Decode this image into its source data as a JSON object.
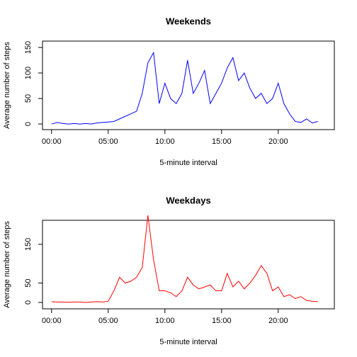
{
  "chart_data": [
    {
      "type": "line",
      "title": "Weekends",
      "x_label": "5-minute interval",
      "y_label": "Average number of steps",
      "x": [
        0,
        0.5,
        1,
        1.5,
        2,
        2.5,
        3,
        3.5,
        4,
        4.5,
        5,
        5.5,
        6,
        6.5,
        7,
        7.5,
        8,
        8.5,
        9,
        9.5,
        10,
        10.5,
        11,
        11.5,
        12,
        12.5,
        13,
        13.5,
        14,
        14.5,
        15,
        15.5,
        16,
        16.5,
        17,
        17.5,
        18,
        18.5,
        19,
        19.5,
        20,
        20.5,
        21,
        21.5,
        22,
        22.5,
        23,
        23.5
      ],
      "series": [
        {
          "name": "Weekends",
          "color": "#0000ff",
          "values": [
            0,
            3,
            1,
            0,
            1,
            0,
            1,
            0,
            2,
            3,
            4,
            5,
            10,
            15,
            20,
            25,
            60,
            120,
            140,
            40,
            80,
            50,
            40,
            60,
            125,
            60,
            80,
            105,
            40,
            60,
            80,
            110,
            130,
            85,
            100,
            70,
            50,
            60,
            40,
            50,
            80,
            40,
            20,
            5,
            3,
            10,
            2,
            5
          ]
        }
      ],
      "xlim": [
        -0.8,
        24.95
      ],
      "ylim": [
        -11,
        162.5
      ],
      "xticks": [
        {
          "value": 0,
          "label": "00:00"
        },
        {
          "value": 5,
          "label": "05:00"
        },
        {
          "value": 10,
          "label": "10:00"
        },
        {
          "value": 15,
          "label": "15:00"
        },
        {
          "value": 20,
          "label": "20:00"
        }
      ],
      "yticks": [
        0,
        50,
        100,
        150
      ]
    },
    {
      "type": "line",
      "title": "Weekdays",
      "x_label": "5-minute interval",
      "y_label": "Average number of steps",
      "x": [
        0,
        0.5,
        1,
        1.5,
        2,
        2.5,
        3,
        3.5,
        4,
        4.5,
        5,
        5.5,
        6,
        6.5,
        7,
        7.5,
        8,
        8.5,
        9,
        9.5,
        10,
        10.5,
        11,
        11.5,
        12,
        12.5,
        13,
        13.5,
        14,
        14.5,
        15,
        15.5,
        16,
        16.5,
        17,
        17.5,
        18,
        18.5,
        19,
        19.5,
        20,
        20.5,
        21,
        21.5,
        22,
        22.5,
        23,
        23.5
      ],
      "series": [
        {
          "name": "Weekdays",
          "color": "#ff0000",
          "values": [
            2,
            1,
            1,
            0.5,
            1,
            1,
            0,
            1,
            2,
            1,
            3,
            30,
            65,
            50,
            55,
            65,
            90,
            225,
            110,
            30,
            30,
            25,
            15,
            30,
            65,
            45,
            35,
            40,
            45,
            30,
            30,
            75,
            40,
            55,
            35,
            50,
            70,
            95,
            75,
            30,
            40,
            15,
            20,
            10,
            15,
            5,
            3,
            2
          ]
        }
      ],
      "xlim": [
        -0.8,
        24.95
      ],
      "ylim": [
        -16.5,
        212
      ],
      "xticks": [
        {
          "value": 0,
          "label": "00:00"
        },
        {
          "value": 5,
          "label": "05:00"
        },
        {
          "value": 10,
          "label": "10:00"
        },
        {
          "value": 15,
          "label": "15:00"
        },
        {
          "value": 20,
          "label": "20:00"
        }
      ],
      "yticks": [
        0,
        50,
        150
      ]
    }
  ]
}
